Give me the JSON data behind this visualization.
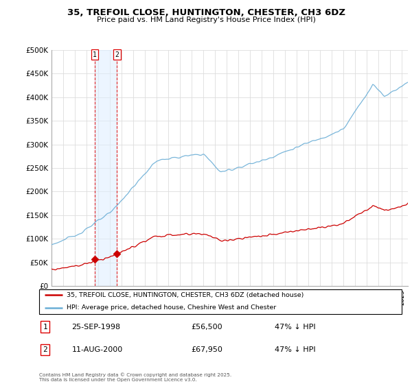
{
  "title_line1": "35, TREFOIL CLOSE, HUNTINGTON, CHESTER, CH3 6DZ",
  "title_line2": "Price paid vs. HM Land Registry's House Price Index (HPI)",
  "ylim": [
    0,
    500000
  ],
  "yticks": [
    0,
    50000,
    100000,
    150000,
    200000,
    250000,
    300000,
    350000,
    400000,
    450000,
    500000
  ],
  "ytick_labels": [
    "£0",
    "£50K",
    "£100K",
    "£150K",
    "£200K",
    "£250K",
    "£300K",
    "£350K",
    "£400K",
    "£450K",
    "£500K"
  ],
  "hpi_color": "#6baed6",
  "price_color": "#cc0000",
  "sale1_date": "25-SEP-1998",
  "sale1_price": 56500,
  "sale1_hpi_pct": "47% ↓ HPI",
  "sale1_t": 1998.71,
  "sale2_date": "11-AUG-2000",
  "sale2_price": 67950,
  "sale2_hpi_pct": "47% ↓ HPI",
  "sale2_t": 2000.61,
  "legend_label1": "35, TREFOIL CLOSE, HUNTINGTON, CHESTER, CH3 6DZ (detached house)",
  "legend_label2": "HPI: Average price, detached house, Cheshire West and Chester",
  "footer": "Contains HM Land Registry data © Crown copyright and database right 2025.\nThis data is licensed under the Open Government Licence v3.0.",
  "grid_color": "#dddddd",
  "vline_color": "#dd0000",
  "highlight_bg": "#ddeeff",
  "xstart": 1995.0,
  "xend": 2025.5
}
